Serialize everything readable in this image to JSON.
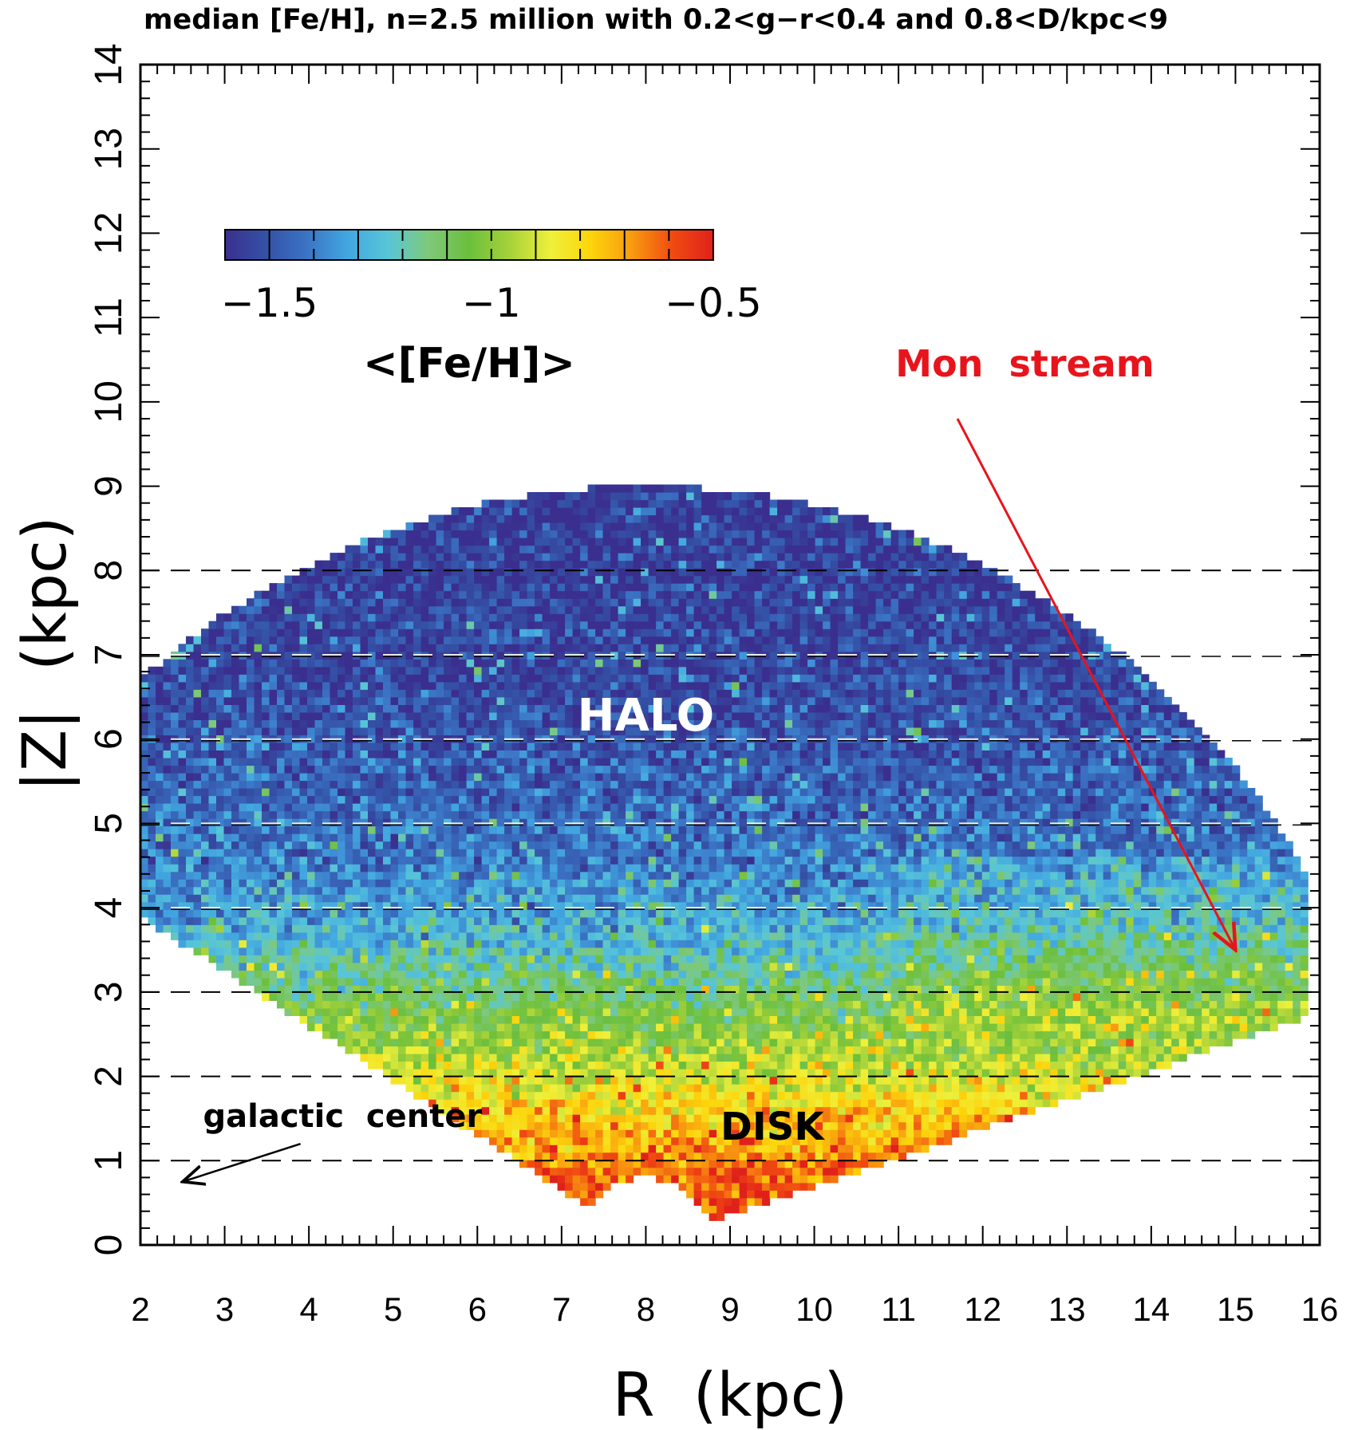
{
  "chart_data": {
    "type": "heatmap",
    "title": "median [Fe/H], n=2.5 million with 0.2<g−r<0.4 and 0.8<D/kpc<9",
    "xlabel": "R  (kpc)",
    "ylabel": "|Z|  (kpc)",
    "xlim": [
      2,
      16
    ],
    "ylim": [
      0,
      14
    ],
    "x_ticks": [
      "2",
      "3",
      "4",
      "5",
      "6",
      "7",
      "8",
      "9",
      "10",
      "11",
      "12",
      "13",
      "14",
      "15",
      "16"
    ],
    "y_ticks": [
      "0",
      "1",
      "2",
      "3",
      "4",
      "5",
      "6",
      "7",
      "8",
      "9",
      "10",
      "11",
      "12",
      "13",
      "14"
    ],
    "dashed_lines_z": [
      1,
      2,
      3,
      4,
      5,
      6,
      7,
      8
    ],
    "colorbar": {
      "title": "<[Fe/H]>",
      "range": [
        -1.6,
        -0.5
      ],
      "tick_values": [
        -1.5,
        -1,
        -0.5
      ],
      "tick_labels": [
        "−1.5",
        "−1",
        "−0.5"
      ],
      "colors": [
        "#3a2f8e",
        "#3451a6",
        "#3b73c4",
        "#42a6e0",
        "#58c6d8",
        "#7ec97a",
        "#6bbf3c",
        "#a6d23a",
        "#eef03a",
        "#fdd40b",
        "#f89a10",
        "#f04b12",
        "#e0201a"
      ]
    },
    "median_feh_profile": {
      "z_kpc": [
        0.3,
        0.8,
        1.3,
        1.8,
        2.3,
        2.8,
        3.3,
        3.8,
        4.5,
        5.5,
        6.5,
        7.5,
        9.0
      ],
      "feh": [
        -0.55,
        -0.62,
        -0.72,
        -0.84,
        -0.96,
        -1.06,
        -1.18,
        -1.3,
        -1.4,
        -1.47,
        -1.52,
        -1.55,
        -1.57
      ]
    },
    "annotations": {
      "halo": {
        "text": "HALO",
        "color": "#ffffff",
        "x": 8.0,
        "z": 6.1
      },
      "disk": {
        "text": "DISK",
        "color": "#000000",
        "x": 9.5,
        "z": 1.25
      },
      "mon_stream": {
        "text": "Mon  stream",
        "color": "#e8141c",
        "x": 12.5,
        "z": 10.3,
        "arrow_from": [
          11.7,
          9.8
        ],
        "arrow_to": [
          15.0,
          3.5
        ]
      },
      "galactic_center": {
        "text": "galactic  center",
        "color": "#000000",
        "x": 4.4,
        "z": 1.4,
        "arrow_from": [
          3.9,
          1.2
        ],
        "arrow_to": [
          2.5,
          0.75
        ]
      }
    }
  }
}
